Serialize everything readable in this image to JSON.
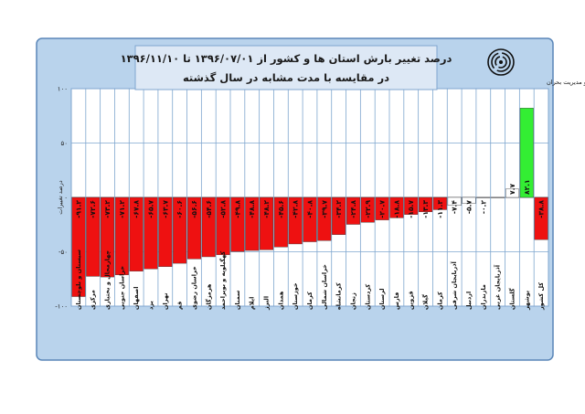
{
  "chart_data": {
    "type": "bar",
    "title": "درصد تغییر بارش استان ها و کشور از ۱۳۹۶/۰۷/۰۱ تا ۱۳۹۶/۱۱/۱۰",
    "subtitle": "در مقایسه با مدت مشابه در سال گذشته",
    "xlabel": "",
    "ylabel": "درصد تغییرات",
    "ylim": [
      -100,
      100
    ],
    "yticks": [
      100,
      50,
      0,
      -50,
      -100
    ],
    "ytick_labels": [
      "۱۰۰",
      "۵۰",
      "۰",
      "-۵۰",
      "-۱۰۰"
    ],
    "grid": true,
    "colors": {
      "negative": "#ee1111",
      "positive": "#33ee33",
      "neutral": "#ffffff"
    },
    "categories": [
      "سیستان و بلوچستان",
      "مرکزی",
      "چهارمحال و بختیاری",
      "خراسان جنوبی",
      "اصفهان",
      "یزد",
      "تهران",
      "قم",
      "خراسان رضوی",
      "هرمزگان",
      "کهگیلویه و بویراحمد",
      "سمنان",
      "ایلام",
      "البرز",
      "همدان",
      "خوزستان",
      "کرمان",
      "خراسان شمالی",
      "کرمانشاه",
      "زنجان",
      "کردستان",
      "لرستان",
      "فارس",
      "قزوین",
      "گیلان",
      "کرمان",
      "آذربایجان شرقی",
      "اردبیل",
      "مازندران",
      "آذربایجان غربی",
      "گلستان",
      "بوشهر",
      "کل کشور"
    ],
    "values": [
      -91.2,
      -72.6,
      -73.2,
      -71.2,
      -67.8,
      -65.7,
      -63.7,
      -60.6,
      -56.6,
      -54.6,
      -52.8,
      -49.8,
      -48.8,
      -48.2,
      -45.6,
      -42.8,
      -40.8,
      -39.7,
      -34.2,
      -24.8,
      -22.9,
      -20.7,
      -18.8,
      -15.7,
      -13.3,
      -11.3,
      -7.4,
      -5.7,
      -0.2,
      0.0,
      7.7,
      82.1,
      -38.8
    ],
    "value_labels": [
      "-۹۱.۲",
      "-۷۲.۶",
      "-۷۳.۲",
      "-۷۱.۲",
      "-۶۷.۸",
      "-۶۵.۷",
      "-۶۳.۷",
      "-۶۰.۶",
      "-۵۶.۶",
      "-۵۴.۶",
      "-۵۲.۸",
      "-۴۹.۸",
      "-۴۸.۸",
      "-۴۸.۲",
      "-۴۵.۶",
      "-۴۲.۸",
      "-۴۰.۸",
      "-۳۹.۷",
      "-۳۴.۲",
      "-۲۴.۸",
      "-۲۲.۹",
      "-۲۰.۷",
      "-۱۸.۸",
      "-۱۵.۷",
      "-۱۳.۳",
      "-۱۱.۳",
      "-۷.۴",
      "-۵.۷",
      "-۰.۲",
      "",
      "۷.۷",
      "۸۲.۱",
      "-۳۸.۸"
    ],
    "bar_styles": [
      "neg",
      "neg",
      "neg",
      "neg",
      "neg",
      "neg",
      "neg",
      "neg",
      "neg",
      "neg",
      "neg",
      "neg",
      "neg",
      "neg",
      "neg",
      "neg",
      "neg",
      "neg",
      "neg",
      "neg",
      "neg",
      "neg",
      "neg",
      "neg",
      "neg",
      "neg",
      "white",
      "white",
      "white",
      "white",
      "white",
      "pos",
      "neg"
    ]
  },
  "logo": {
    "org_name": "مرکز ملی خشکسالی و مدیریت بحران",
    "icon": "spiral-logo-icon"
  }
}
